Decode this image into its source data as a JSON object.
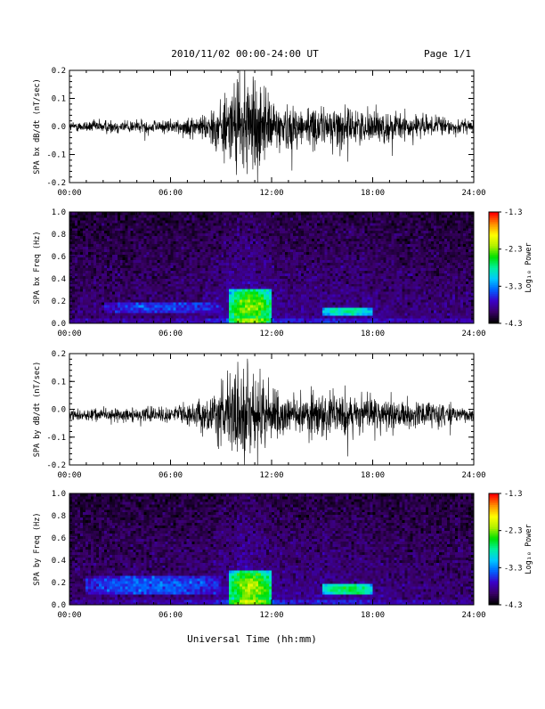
{
  "header": {
    "title": "2010/11/02  00:00-24:00 UT",
    "page": "Page 1/1"
  },
  "footer": {
    "xlabel": "Universal Time (hh:mm)"
  },
  "colors": {
    "trace": "#000000",
    "colormap": [
      "#000000",
      "#3a0068",
      "#3b00c8",
      "#0060ff",
      "#00c8ff",
      "#00f0a0",
      "#00e000",
      "#b0f000",
      "#ffff00",
      "#ff9000",
      "#ff0000"
    ]
  },
  "chart_data": [
    {
      "type": "line",
      "id": "bx-dbdt",
      "ylabel": "SPA bx dB/dt (nT/sec)",
      "x_ticks": [
        "00:00",
        "06:00",
        "12:00",
        "18:00",
        "24:00"
      ],
      "x_range_hours": [
        0,
        24
      ],
      "ylim": [
        -0.2,
        0.2
      ],
      "y_ticks": [
        "-0.2",
        "-0.1",
        "0.0",
        "0.1",
        "0.2"
      ],
      "envelope": {
        "hours": [
          0,
          2,
          4,
          6,
          7.5,
          8.5,
          9.5,
          10,
          10.5,
          11,
          11.5,
          12,
          13,
          14,
          15,
          16,
          17,
          18,
          20,
          22,
          24
        ],
        "amplitude": [
          0.02,
          0.03,
          0.03,
          0.03,
          0.04,
          0.08,
          0.17,
          0.2,
          0.2,
          0.2,
          0.16,
          0.12,
          0.09,
          0.09,
          0.08,
          0.09,
          0.07,
          0.07,
          0.06,
          0.04,
          0.03
        ]
      },
      "baseline": 0.0
    },
    {
      "type": "heatmap",
      "id": "bx-spectrogram",
      "ylabel": "SPA bx Freq (Hz)",
      "x_ticks": [
        "00:00",
        "06:00",
        "12:00",
        "18:00",
        "24:00"
      ],
      "x_range_hours": [
        0,
        24
      ],
      "ylim": [
        0.0,
        1.0
      ],
      "y_ticks": [
        "0.0",
        "0.2",
        "0.4",
        "0.6",
        "0.8",
        "1.0"
      ],
      "colorbar": {
        "label": "Log₁₀ Power",
        "ticks": [
          "-1.3",
          "-2.3",
          "-3.3",
          "-4.3"
        ],
        "range": [
          -4.3,
          -1.3
        ]
      },
      "features": [
        {
          "hours": [
            9.5,
            12
          ],
          "freq_hz": [
            0.0,
            0.3
          ],
          "log_power": -2.3
        },
        {
          "hours": [
            15,
            18
          ],
          "freq_hz": [
            0.08,
            0.15
          ],
          "log_power": -2.8
        },
        {
          "hours": [
            2,
            9
          ],
          "freq_hz": [
            0.1,
            0.2
          ],
          "log_power": -3.5
        }
      ]
    },
    {
      "type": "line",
      "id": "by-dbdt",
      "ylabel": "SPA by dB/dt (nT/sec)",
      "x_ticks": [
        "00:00",
        "06:00",
        "12:00",
        "18:00",
        "24:00"
      ],
      "x_range_hours": [
        0,
        24
      ],
      "ylim": [
        -0.2,
        0.2
      ],
      "y_ticks": [
        "-0.2",
        "-0.1",
        "0.0",
        "0.1",
        "0.2"
      ],
      "envelope": {
        "hours": [
          0,
          2,
          4,
          6,
          7.5,
          8.5,
          9.5,
          10,
          10.5,
          11,
          11.5,
          12,
          13,
          14,
          15,
          16,
          17,
          18,
          20,
          22,
          24
        ],
        "amplitude": [
          0.02,
          0.03,
          0.03,
          0.03,
          0.05,
          0.09,
          0.18,
          0.2,
          0.2,
          0.2,
          0.17,
          0.12,
          0.1,
          0.09,
          0.09,
          0.1,
          0.08,
          0.07,
          0.06,
          0.05,
          0.03
        ]
      },
      "baseline": -0.02
    },
    {
      "type": "heatmap",
      "id": "by-spectrogram",
      "ylabel": "SPA by Freq (Hz)",
      "x_ticks": [
        "00:00",
        "06:00",
        "12:00",
        "18:00",
        "24:00"
      ],
      "x_range_hours": [
        0,
        24
      ],
      "ylim": [
        0.0,
        1.0
      ],
      "y_ticks": [
        "0.0",
        "0.2",
        "0.4",
        "0.6",
        "0.8",
        "1.0"
      ],
      "colorbar": {
        "label": "Log₁₀ Power",
        "ticks": [
          "-1.3",
          "-2.3",
          "-3.3",
          "-4.3"
        ],
        "range": [
          -4.3,
          -1.3
        ]
      },
      "features": [
        {
          "hours": [
            9.5,
            12
          ],
          "freq_hz": [
            0.0,
            0.3
          ],
          "log_power": -2.2
        },
        {
          "hours": [
            15,
            18
          ],
          "freq_hz": [
            0.1,
            0.18
          ],
          "log_power": -2.6
        },
        {
          "hours": [
            1,
            9
          ],
          "freq_hz": [
            0.1,
            0.25
          ],
          "log_power": -3.4
        }
      ]
    }
  ]
}
